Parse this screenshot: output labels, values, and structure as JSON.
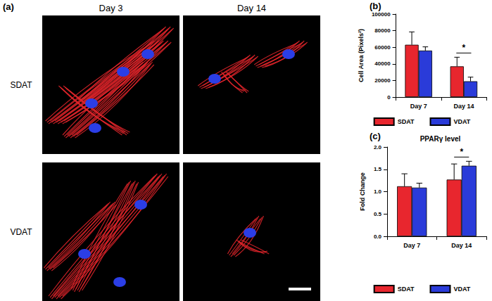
{
  "image_panel": {
    "label": "(a)",
    "columns": [
      "Day 3",
      "Day 14"
    ],
    "rows": [
      "SDAT",
      "VDAT"
    ]
  },
  "chart_data": [
    {
      "type": "bar",
      "panel": "(b)",
      "y_label": "Cell Area (Pixels²)",
      "categories": [
        "Day 7",
        "Day 14"
      ],
      "series": [
        {
          "name": "SDAT",
          "color": "#e8262e",
          "values": [
            63000,
            37000
          ],
          "errors": [
            15500,
            11000
          ]
        },
        {
          "name": "VDAT",
          "color": "#2a3bd9",
          "values": [
            56000,
            19000
          ],
          "errors": [
            4500,
            5000
          ]
        }
      ],
      "ylim": [
        0,
        100000
      ],
      "yticks": [
        0,
        20000,
        40000,
        60000,
        80000,
        100000
      ],
      "grid": false,
      "legend": "bottom",
      "annotations": [
        {
          "category": "Day 14",
          "text": "*"
        }
      ]
    },
    {
      "type": "bar",
      "panel": "(c)",
      "title": "PPARγ level",
      "y_label": "Fold Change",
      "categories": [
        "Day 7",
        "Day 14"
      ],
      "series": [
        {
          "name": "SDAT",
          "color": "#e8262e",
          "values": [
            1.12,
            1.27
          ],
          "errors": [
            0.28,
            0.35
          ]
        },
        {
          "name": "VDAT",
          "color": "#2a3bd9",
          "values": [
            1.09,
            1.58
          ],
          "errors": [
            0.1,
            0.1
          ]
        }
      ],
      "ylim": [
        0,
        2.0
      ],
      "yticks": [
        {
          "value": 0,
          "label": "0.0"
        },
        0.5,
        {
          "value": 1,
          "label": "1.0"
        },
        1.5,
        {
          "value": 2,
          "label": "2.0"
        }
      ],
      "grid": false,
      "legend": "bottom",
      "annotations": [
        {
          "category": "Day 14",
          "text": "*"
        }
      ]
    }
  ]
}
